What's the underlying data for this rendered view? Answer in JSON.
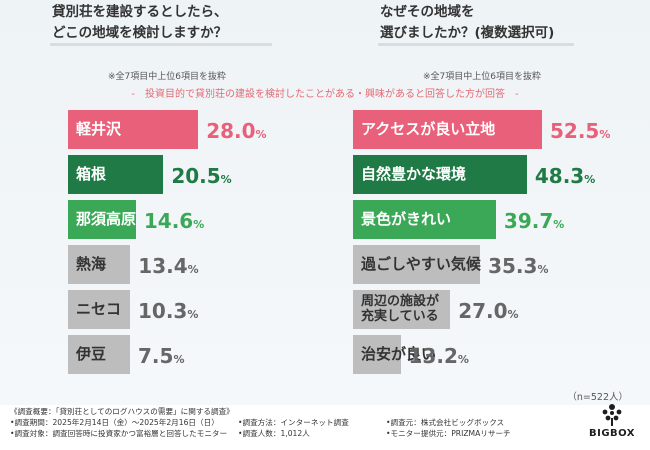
{
  "left_question": {
    "line1": "貸別荘を建設するとしたら、",
    "line2": "どこの地域を検討しますか？"
  },
  "right_question": {
    "line1": "なぜその地域を",
    "line2": "選びましたか？(複数選択可)"
  },
  "left_note": "※全7項目中上位6項目を抜粋",
  "right_note": "※全7項目中上位6項目を抜粋",
  "subtitle": "-　投資目的で貸別荘の建設を検討したことがある・興味があると回答した方が回答　-",
  "n_label": "（n=522人）",
  "chart_data": [
    {
      "type": "bar",
      "orientation": "horizontal",
      "title": "貸別荘を建設するとしたら、どこの地域を検討しますか？",
      "categories": [
        "軽井沢",
        "箱根",
        "那須高原",
        "熱海",
        "ニセコ",
        "伊豆"
      ],
      "values": [
        28.0,
        20.5,
        14.6,
        13.4,
        10.3,
        7.5
      ],
      "value_labels": [
        {
          "num": "28.0",
          "pct": "%"
        },
        {
          "num": "20.5",
          "pct": "%"
        },
        {
          "num": "14.6",
          "pct": "%"
        },
        {
          "num": "13.4",
          "pct": "%"
        },
        {
          "num": "10.3",
          "pct": "%"
        },
        {
          "num": "7.5",
          "pct": "%"
        }
      ],
      "unit": "%",
      "xlim": [
        0,
        60
      ],
      "colors": [
        "#e8607a",
        "#1f7a45",
        "#3aa857",
        "#bdbdbd",
        "#bdbdbd",
        "#bdbdbd"
      ],
      "label_colors": [
        "#ffffff",
        "#ffffff",
        "#ffffff",
        "#333333",
        "#333333",
        "#333333"
      ],
      "value_colors": [
        "#e8607a",
        "#1f7a45",
        "#3aa857",
        "#666666",
        "#666666",
        "#666666"
      ]
    },
    {
      "type": "bar",
      "orientation": "horizontal",
      "title": "なぜその地域を選びましたか？(複数選択可)",
      "categories": [
        "アクセスが良い立地",
        "自然豊かな環境",
        "景色がきれい",
        "過ごしやすい気候",
        "周辺の施設が 充実している",
        "治安が良い"
      ],
      "values": [
        52.5,
        48.3,
        39.7,
        35.3,
        27.0,
        13.2
      ],
      "value_labels": [
        {
          "num": "52.5",
          "pct": "%"
        },
        {
          "num": "48.3",
          "pct": "%"
        },
        {
          "num": "39.7",
          "pct": "%"
        },
        {
          "num": "35.3",
          "pct": "%"
        },
        {
          "num": "27.0",
          "pct": "%"
        },
        {
          "num": "13.2",
          "pct": "%"
        }
      ],
      "unit": "%",
      "xlim": [
        0,
        60
      ],
      "colors": [
        "#e8607a",
        "#1f7a45",
        "#3aa857",
        "#bdbdbd",
        "#bdbdbd",
        "#bdbdbd"
      ],
      "label_colors": [
        "#ffffff",
        "#ffffff",
        "#ffffff",
        "#333333",
        "#333333",
        "#333333"
      ],
      "value_colors": [
        "#e8607a",
        "#1f7a45",
        "#3aa857",
        "#666666",
        "#666666",
        "#666666"
      ]
    }
  ],
  "footer": {
    "title": "《調査概要：「貸別荘としてのログハウスの需要」に関する調査》",
    "period": "•調査期間：2025年2月14日（金）〜2025年2月16日（日）",
    "method": "•調査方法：インターネット調査",
    "organizer": "•調査元：株式会社ビッグボックス",
    "target": "•調査対象：調査回答時に投資家かつ富裕層と回答したモニター",
    "count": "•調査人数：1,012人",
    "provider": "•モニター提供元：PRIZMAリサーチ"
  },
  "logo": {
    "name": "bigbox-logo-icon",
    "word": "BIGBOX"
  }
}
